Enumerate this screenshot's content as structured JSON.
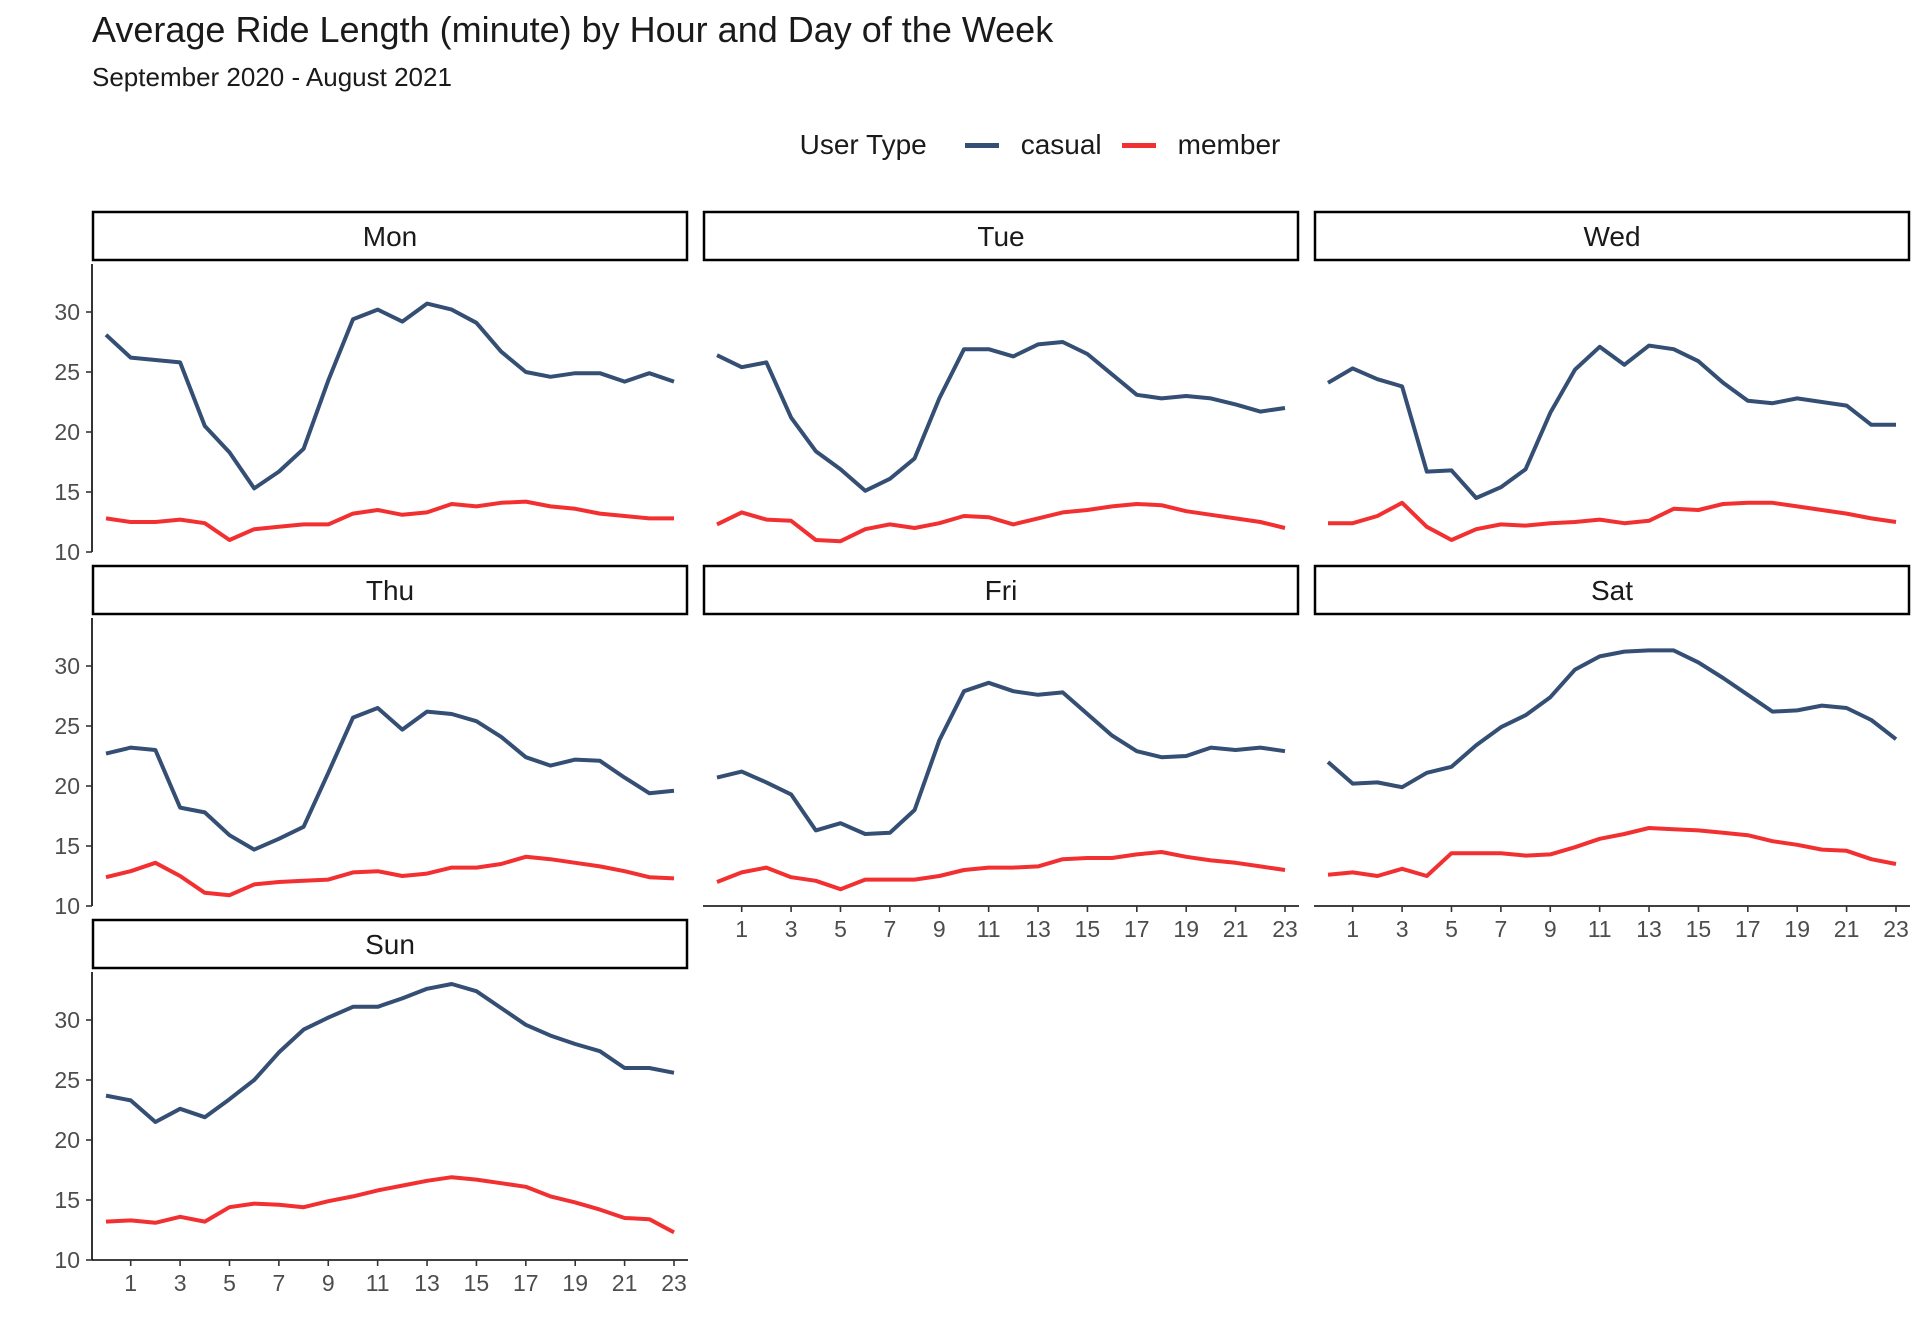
{
  "title": "Average Ride Length (minute) by Hour and Day of the Week",
  "subtitle": "September 2020 - August 2021",
  "legend": {
    "title": "User Type",
    "items": [
      {
        "label": "casual",
        "color": "#344e74"
      },
      {
        "label": "member",
        "color": "#f23031"
      }
    ]
  },
  "chart_data": {
    "type": "line",
    "facet_by": "day_of_week",
    "x": [
      0,
      1,
      2,
      3,
      4,
      5,
      6,
      7,
      8,
      9,
      10,
      11,
      12,
      13,
      14,
      15,
      16,
      17,
      18,
      19,
      20,
      21,
      22,
      23
    ],
    "x_tick_labels": [
      1,
      3,
      5,
      7,
      9,
      11,
      13,
      15,
      17,
      19,
      21,
      23
    ],
    "y_tick_labels": [
      10,
      15,
      20,
      25,
      30
    ],
    "ylim": [
      10,
      34
    ],
    "grid": false,
    "legend_position": "top",
    "series_colors": {
      "casual": "#344e74",
      "member": "#f23031"
    },
    "panels": [
      {
        "name": "Mon",
        "casual": [
          28.1,
          26.2,
          26.0,
          25.8,
          20.5,
          18.3,
          15.3,
          16.7,
          18.6,
          24.3,
          29.4,
          30.2,
          29.2,
          30.7,
          30.2,
          29.1,
          26.7,
          25.0,
          24.6,
          24.9,
          24.9,
          24.2,
          24.9,
          24.2
        ],
        "member": [
          12.8,
          12.5,
          12.5,
          12.7,
          12.4,
          11.0,
          11.9,
          12.1,
          12.3,
          12.3,
          13.2,
          13.5,
          13.1,
          13.3,
          14.0,
          13.8,
          14.1,
          14.2,
          13.8,
          13.6,
          13.2,
          13.0,
          12.8,
          12.8
        ]
      },
      {
        "name": "Tue",
        "casual": [
          26.4,
          25.4,
          25.8,
          21.2,
          18.4,
          16.9,
          15.1,
          16.1,
          17.8,
          22.8,
          26.9,
          26.9,
          26.3,
          27.3,
          27.5,
          26.5,
          24.8,
          23.1,
          22.8,
          23.0,
          22.8,
          22.3,
          21.7,
          22.0
        ],
        "member": [
          12.3,
          13.3,
          12.7,
          12.6,
          11.0,
          10.9,
          11.9,
          12.3,
          12.0,
          12.4,
          13.0,
          12.9,
          12.3,
          12.8,
          13.3,
          13.5,
          13.8,
          14.0,
          13.9,
          13.4,
          13.1,
          12.8,
          12.5,
          12.0
        ]
      },
      {
        "name": "Wed",
        "casual": [
          24.1,
          25.3,
          24.4,
          23.8,
          16.7,
          16.8,
          14.5,
          15.4,
          16.9,
          21.6,
          25.2,
          27.1,
          25.6,
          27.2,
          26.9,
          25.9,
          24.1,
          22.6,
          22.4,
          22.8,
          22.5,
          22.2,
          20.6,
          20.6
        ],
        "member": [
          12.4,
          12.4,
          13.0,
          14.1,
          12.1,
          11.0,
          11.9,
          12.3,
          12.2,
          12.4,
          12.5,
          12.7,
          12.4,
          12.6,
          13.6,
          13.5,
          14.0,
          14.1,
          14.1,
          13.8,
          13.5,
          13.2,
          12.8,
          12.5
        ]
      },
      {
        "name": "Thu",
        "casual": [
          22.7,
          23.2,
          23.0,
          18.2,
          17.8,
          15.9,
          14.7,
          15.6,
          16.6,
          21.1,
          25.7,
          26.5,
          24.7,
          26.2,
          26.0,
          25.4,
          24.1,
          22.4,
          21.7,
          22.2,
          22.1,
          20.7,
          19.4,
          19.6
        ],
        "member": [
          12.4,
          12.9,
          13.6,
          12.5,
          11.1,
          10.9,
          11.8,
          12.0,
          12.1,
          12.2,
          12.8,
          12.9,
          12.5,
          12.7,
          13.2,
          13.2,
          13.5,
          14.1,
          13.9,
          13.6,
          13.3,
          12.9,
          12.4,
          12.3
        ]
      },
      {
        "name": "Fri",
        "casual": [
          20.7,
          21.2,
          20.3,
          19.3,
          16.3,
          16.9,
          16.0,
          16.1,
          18.0,
          23.8,
          27.9,
          28.6,
          27.9,
          27.6,
          27.8,
          26.0,
          24.2,
          22.9,
          22.4,
          22.5,
          23.2,
          23.0,
          23.2,
          22.9
        ],
        "member": [
          12.0,
          12.8,
          13.2,
          12.4,
          12.1,
          11.4,
          12.2,
          12.2,
          12.2,
          12.5,
          13.0,
          13.2,
          13.2,
          13.3,
          13.9,
          14.0,
          14.0,
          14.3,
          14.5,
          14.1,
          13.8,
          13.6,
          13.3,
          13.0
        ]
      },
      {
        "name": "Sat",
        "casual": [
          22.0,
          20.2,
          20.3,
          19.9,
          21.1,
          21.6,
          23.4,
          24.9,
          25.9,
          27.4,
          29.7,
          30.8,
          31.2,
          31.3,
          31.3,
          30.3,
          29.0,
          27.6,
          26.2,
          26.3,
          26.7,
          26.5,
          25.5,
          23.9
        ],
        "member": [
          12.6,
          12.8,
          12.5,
          13.1,
          12.5,
          14.4,
          14.4,
          14.4,
          14.2,
          14.3,
          14.9,
          15.6,
          16.0,
          16.5,
          16.4,
          16.3,
          16.1,
          15.9,
          15.4,
          15.1,
          14.7,
          14.6,
          13.9,
          13.5
        ]
      },
      {
        "name": "Sun",
        "casual": [
          23.7,
          23.3,
          21.5,
          22.6,
          21.9,
          23.4,
          25.0,
          27.3,
          29.2,
          30.2,
          31.1,
          31.1,
          31.8,
          32.6,
          33.0,
          32.4,
          31.0,
          29.6,
          28.7,
          28.0,
          27.4,
          26.0,
          26.0,
          25.6
        ],
        "member": [
          13.2,
          13.3,
          13.1,
          13.6,
          13.2,
          14.4,
          14.7,
          14.6,
          14.4,
          14.9,
          15.3,
          15.8,
          16.2,
          16.6,
          16.9,
          16.7,
          16.4,
          16.1,
          15.3,
          14.8,
          14.2,
          13.5,
          13.4,
          12.3
        ]
      }
    ]
  }
}
